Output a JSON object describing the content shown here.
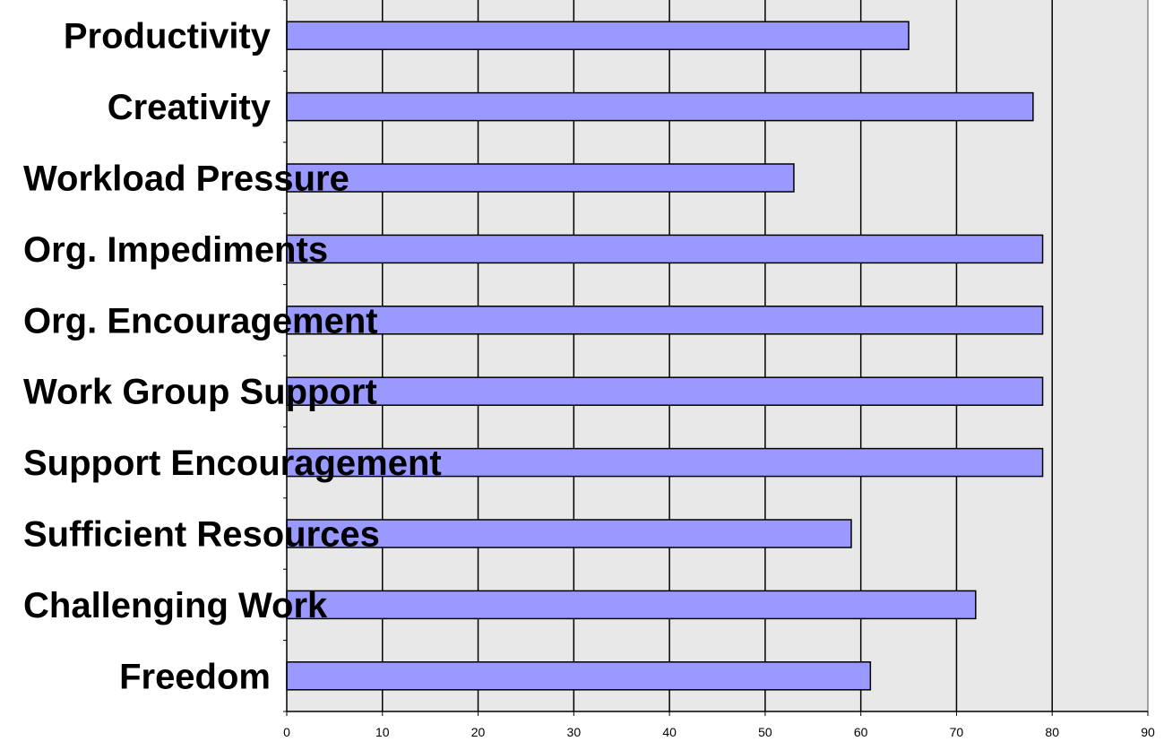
{
  "chart_data": {
    "type": "bar",
    "orientation": "horizontal",
    "categories": [
      "Productivity",
      "Creativity",
      "Workload Pressure",
      "Org. Impediments",
      "Org. Encouragement",
      "Work Group Support",
      "Support Encouragement",
      "Sufficient Resources",
      "Challenging Work",
      "Freedom"
    ],
    "values": [
      65,
      78,
      53,
      79,
      79,
      79,
      79,
      59,
      72,
      61
    ],
    "xticks": [
      "0",
      "10",
      "20",
      "30",
      "40",
      "50",
      "60",
      "70",
      "80",
      "90"
    ],
    "xlim": [
      0,
      90
    ],
    "grid": true,
    "legend": "none",
    "title": "",
    "xlabel": "",
    "ylabel": "",
    "colors": {
      "bar_fill": "#9999ff",
      "bar_stroke": "#000000",
      "plot_background": "#e8e8e8",
      "gridline": "#000000"
    }
  }
}
